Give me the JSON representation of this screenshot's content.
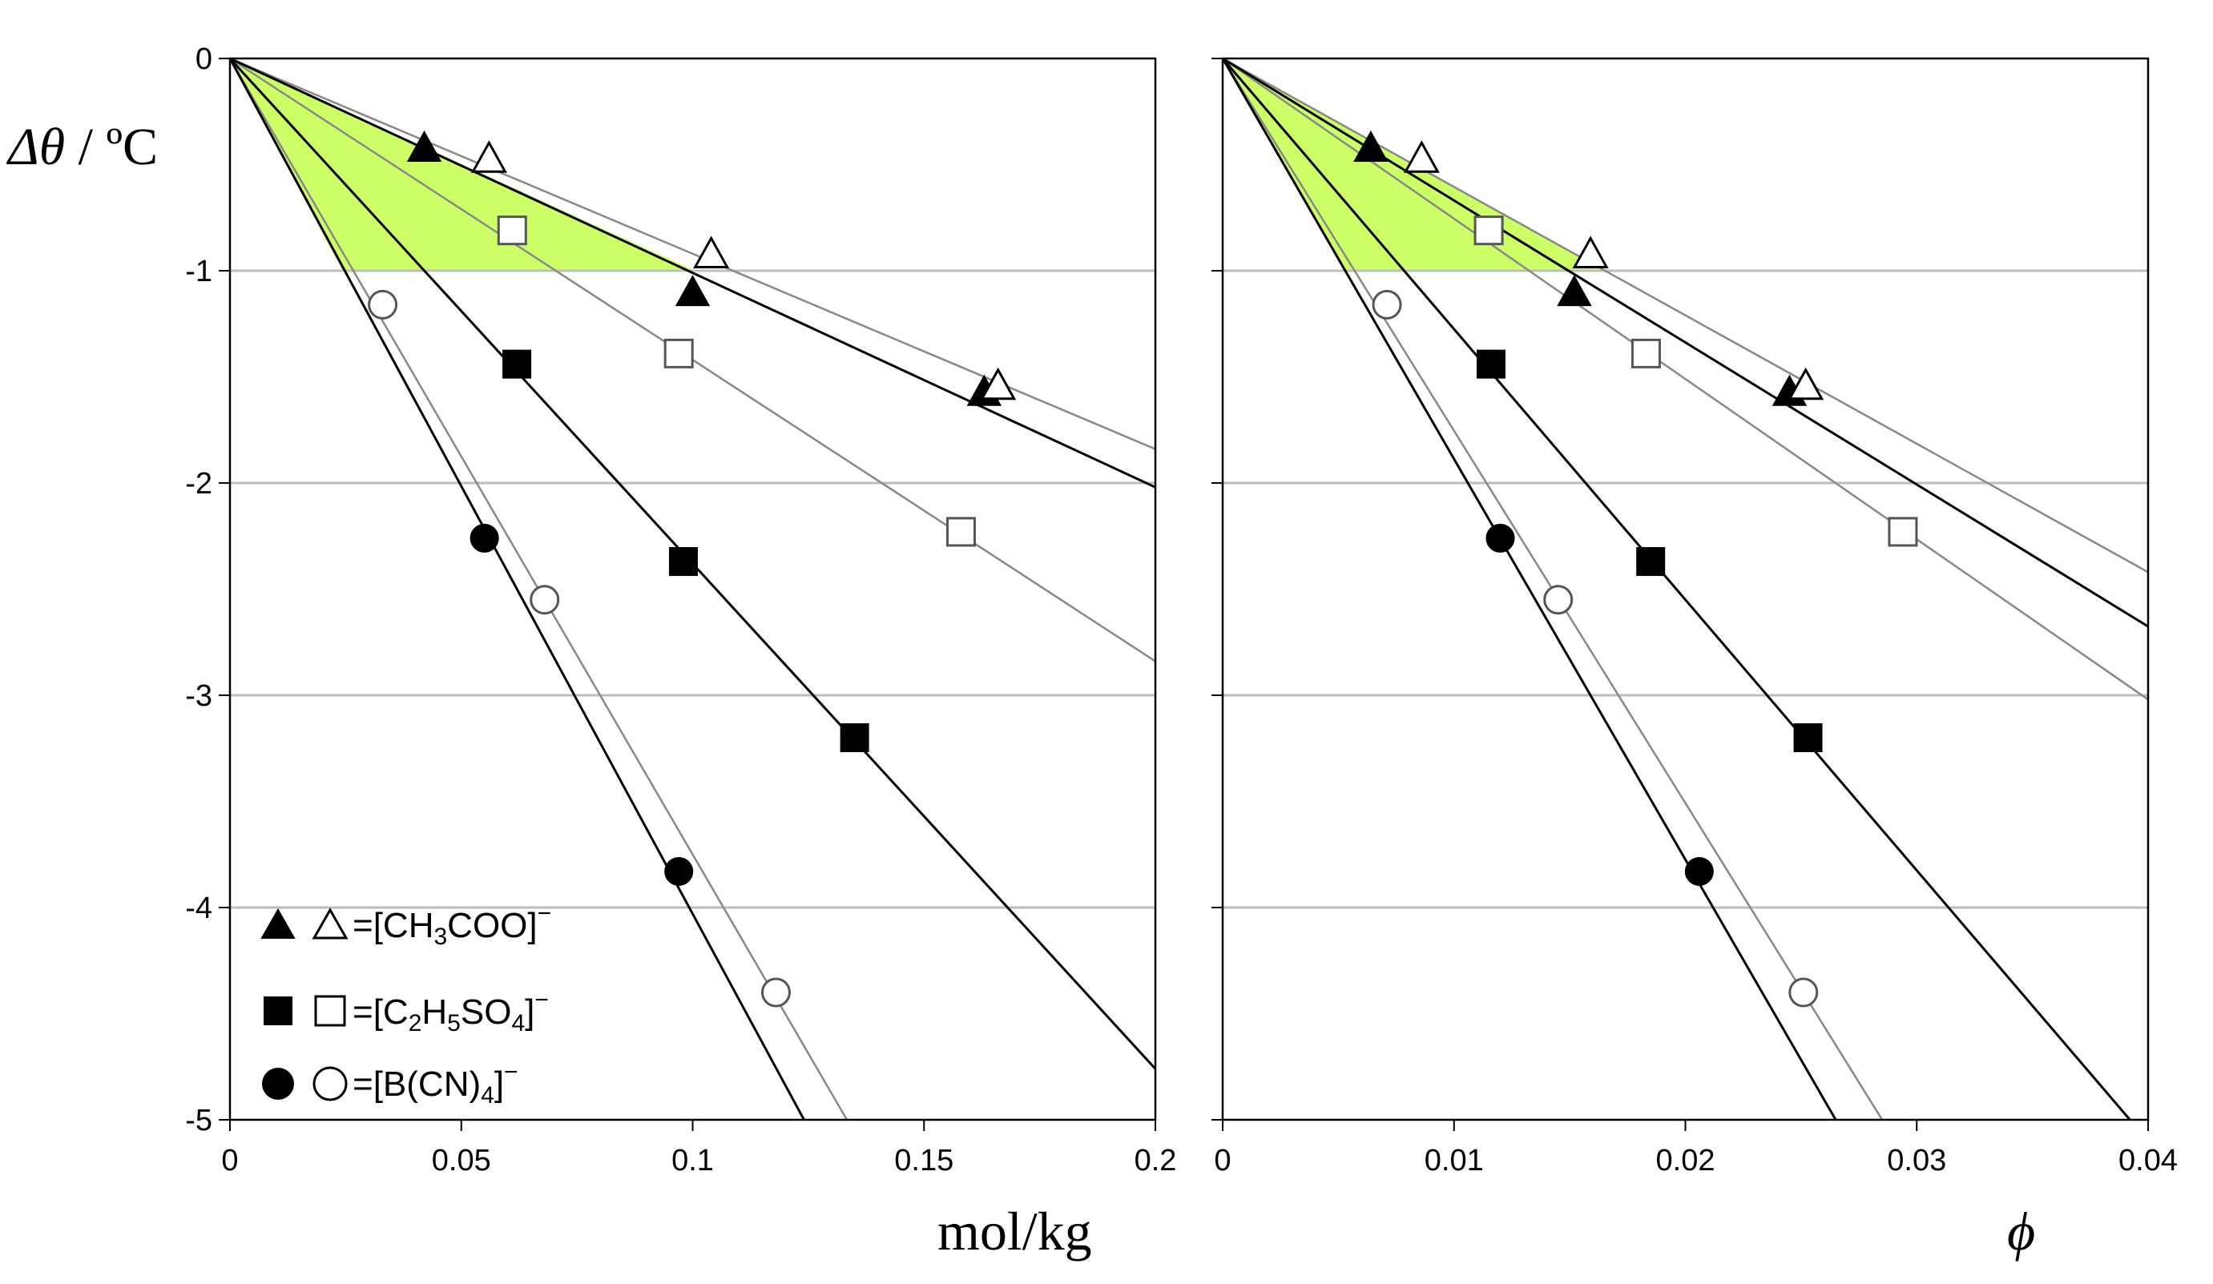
{
  "chart_data": [
    {
      "type": "scatter",
      "panel": "left",
      "xlabel": "mol/kg",
      "ylabel_symbol": "Δθ",
      "ylabel_unit": " / ºC",
      "xlim": [
        0,
        0.2
      ],
      "ylim": [
        -5,
        0
      ],
      "xticks": [
        0,
        0.05,
        0.1,
        0.15,
        0.2
      ],
      "xtick_labels": [
        "0",
        "0.05",
        "0.1",
        "0.15",
        "0.2"
      ],
      "yticks": [
        0,
        -1,
        -2,
        -3,
        -4,
        -5
      ],
      "ytick_labels": [
        "0",
        "-1",
        "-2",
        "-3",
        "-4",
        "-5"
      ],
      "grid": "horizontal",
      "shaded_region": {
        "color": "#ccff66",
        "vertices": [
          [
            0,
            0
          ],
          [
            0.1005,
            -1.0
          ],
          [
            0.0243,
            -1.0
          ]
        ]
      },
      "series": [
        {
          "name": "[CH3COO]- (filled)",
          "marker": "triangle",
          "filled": true,
          "slope": -10.1,
          "line_color": "#000000",
          "x": [
            0.042,
            0.1,
            0.163
          ],
          "y": [
            -0.43,
            -1.11,
            -1.58
          ]
        },
        {
          "name": "[CH3COO]- (open)",
          "marker": "triangle",
          "filled": false,
          "slope": -9.2,
          "line_color": "#888888",
          "x": [
            0.056,
            0.104,
            0.166
          ],
          "y": [
            -0.48,
            -0.93,
            -1.55
          ]
        },
        {
          "name": "[C2H5SO4]- (filled)",
          "marker": "square",
          "filled": true,
          "slope": -23.8,
          "line_color": "#000000",
          "x": [
            0.062,
            0.098,
            0.135
          ],
          "y": [
            -1.44,
            -2.37,
            -3.2
          ]
        },
        {
          "name": "[C2H5SO4]- (open)",
          "marker": "square",
          "filled": false,
          "slope": -14.2,
          "line_color": "#888888",
          "x": [
            0.061,
            0.097,
            0.158
          ],
          "y": [
            -0.81,
            -1.39,
            -2.23
          ]
        },
        {
          "name": "[B(CN)4]- (filled)",
          "marker": "circle",
          "filled": true,
          "slope": -40.3,
          "line_color": "#000000",
          "x": [
            0.055,
            0.097
          ],
          "y": [
            -2.26,
            -3.83
          ]
        },
        {
          "name": "[B(CN)4]- (open)",
          "marker": "circle",
          "filled": false,
          "slope": -37.5,
          "line_color": "#888888",
          "x": [
            0.033,
            0.068,
            0.118
          ],
          "y": [
            -1.16,
            -2.55,
            -4.4
          ]
        }
      ]
    },
    {
      "type": "scatter",
      "panel": "right",
      "xlabel": "ϕ",
      "xlim": [
        0,
        0.04
      ],
      "ylim": [
        -5,
        0
      ],
      "xticks": [
        0,
        0.01,
        0.02,
        0.03,
        0.04
      ],
      "xtick_labels": [
        "0",
        "0.01",
        "0.02",
        "0.03",
        "0.04"
      ],
      "yticks": [
        0,
        -1,
        -2,
        -3,
        -4,
        -5
      ],
      "grid": "horizontal",
      "shaded_region": {
        "color": "#ccff66",
        "vertices": [
          [
            0,
            0
          ],
          [
            0.0165,
            -1.0
          ],
          [
            0.0053,
            -1.0
          ]
        ]
      },
      "series": [
        {
          "name": "[CH3COO]- (filled)",
          "marker": "triangle",
          "filled": true,
          "slope": -66.9,
          "line_color": "#000000",
          "x": [
            0.0064,
            0.0152,
            0.0245
          ],
          "y": [
            -0.43,
            -1.11,
            -1.58
          ]
        },
        {
          "name": "[CH3COO]- (open)",
          "marker": "triangle",
          "filled": false,
          "slope": -60.5,
          "line_color": "#888888",
          "x": [
            0.0086,
            0.0159,
            0.0252
          ],
          "y": [
            -0.48,
            -0.93,
            -1.55
          ]
        },
        {
          "name": "[C2H5SO4]- (filled)",
          "marker": "square",
          "filled": true,
          "slope": -127.5,
          "line_color": "#000000",
          "x": [
            0.0116,
            0.0185,
            0.0253
          ],
          "y": [
            -1.44,
            -2.37,
            -3.2
          ]
        },
        {
          "name": "[C2H5SO4]- (open)",
          "marker": "square",
          "filled": false,
          "slope": -75.5,
          "line_color": "#888888",
          "x": [
            0.0115,
            0.0183,
            0.0294
          ],
          "y": [
            -0.81,
            -1.39,
            -2.23
          ]
        },
        {
          "name": "[B(CN)4]- (filled)",
          "marker": "circle",
          "filled": true,
          "slope": -188.7,
          "line_color": "#000000",
          "x": [
            0.012,
            0.0206
          ],
          "y": [
            -2.26,
            -3.83
          ]
        },
        {
          "name": "[B(CN)4]- (open)",
          "marker": "circle",
          "filled": false,
          "slope": -175.4,
          "line_color": "#888888",
          "x": [
            0.0071,
            0.0145,
            0.0251
          ],
          "y": [
            -1.16,
            -2.55,
            -4.4
          ]
        }
      ]
    }
  ],
  "legend": {
    "position": "bottom-left of left panel",
    "entries": [
      {
        "marker": "triangle",
        "eq": "=[CH",
        "sub1": "3",
        "mid": "COO]",
        "sub2": "",
        "tail": "",
        "sup": "−"
      },
      {
        "marker": "square",
        "eq": "=[C",
        "sub1": "2",
        "mid": "H",
        "sub2": "5",
        "tail": "SO",
        "sub3": "4",
        "end": "]",
        "sup": "−"
      },
      {
        "marker": "circle",
        "eq": "=[B(CN)",
        "sub1": "4",
        "mid": "]",
        "sup": "−"
      }
    ]
  },
  "colors": {
    "shade": "#ccff66",
    "grid": "#bdbdbd",
    "fit_filled": "#000000",
    "fit_open": "#888888"
  }
}
